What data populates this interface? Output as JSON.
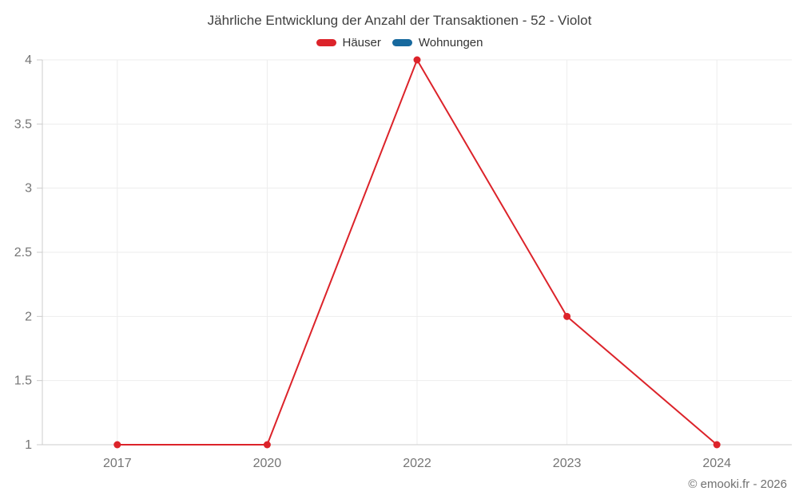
{
  "chart_data": {
    "type": "line",
    "title": "Jährliche Entwicklung der Anzahl der Transaktionen - 52 - Violot",
    "categories": [
      "2017",
      "2020",
      "2022",
      "2023",
      "2024"
    ],
    "series": [
      {
        "name": "Häuser",
        "color": "#dc232a",
        "values": [
          1,
          1,
          4,
          2,
          1
        ]
      },
      {
        "name": "Wohnungen",
        "color": "#17699e",
        "values": []
      }
    ],
    "xlabel": "",
    "ylabel": "",
    "ylim": [
      1,
      4
    ],
    "ytick_step": 0.5,
    "yticks": [
      "1",
      "1.5",
      "2",
      "2.5",
      "3",
      "3.5",
      "4"
    ],
    "grid": true,
    "legend_position": "top",
    "marker": "circle",
    "credit": "© emooki.fr - 2026"
  },
  "colors": {
    "grid": "#ededed",
    "axis": "#cccccc",
    "tick_label": "#757575",
    "title_text": "#404040",
    "legend_text": "#333333",
    "credit_text": "#707070"
  }
}
